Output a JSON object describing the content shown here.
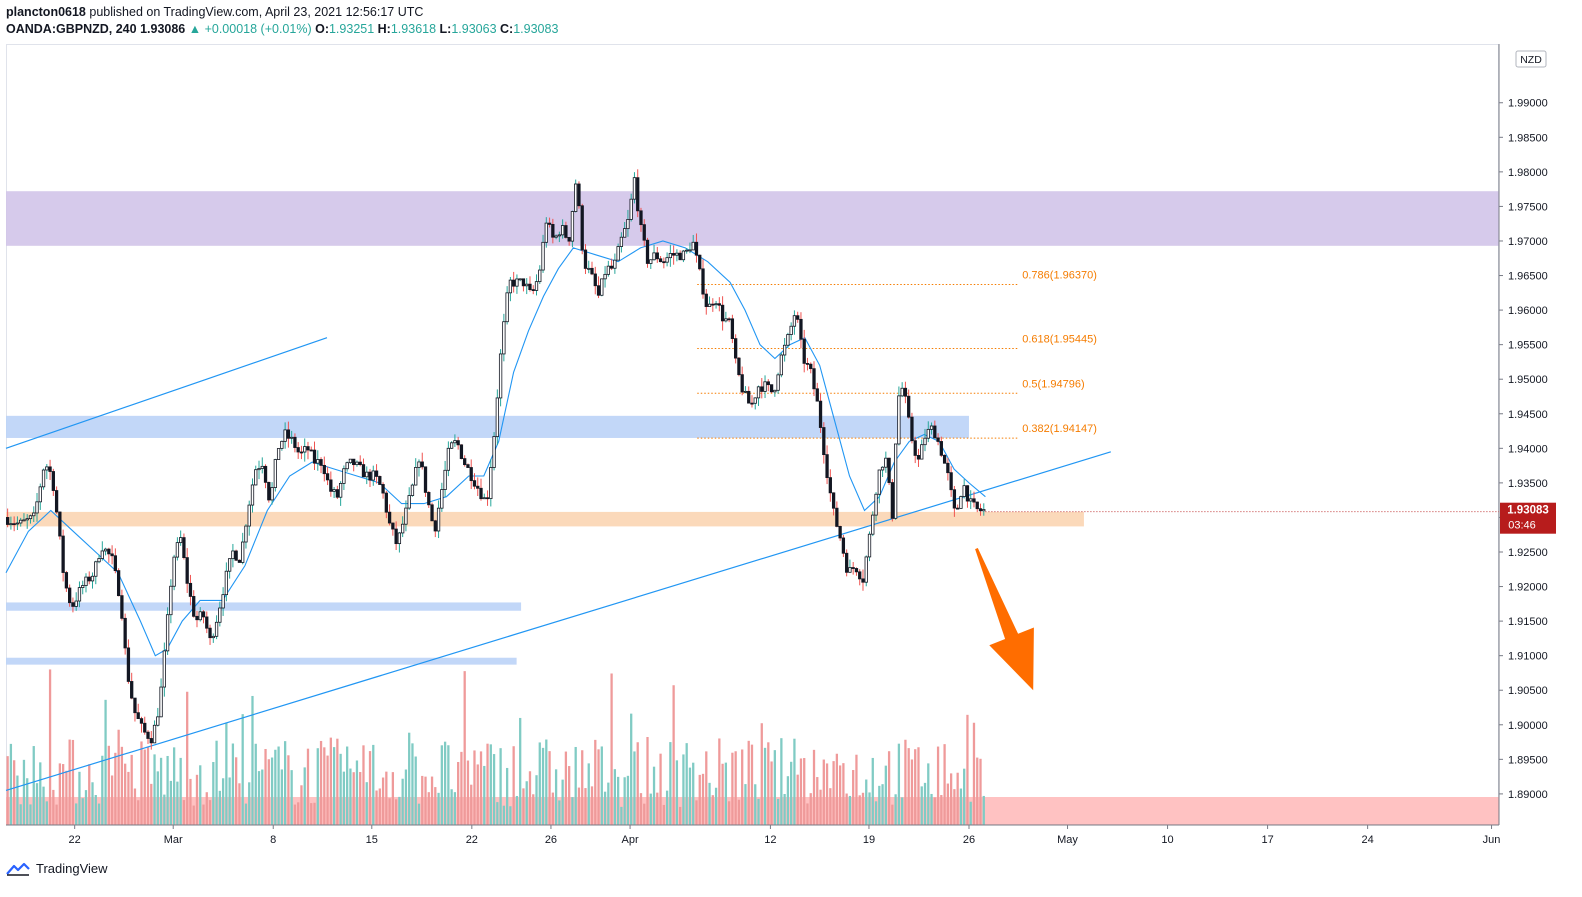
{
  "header": {
    "publisher": "plancton0618",
    "published_text": "published on TradingView.com, April 23, 2021 12:56:17 UTC",
    "symbol": "OANDA:GBPNZD, 240",
    "last": "1.93086",
    "change": "▲ +0.00018 (+0.01%)",
    "o_label": "O:",
    "o_value": "1.93251",
    "h_label": "H:",
    "h_value": "1.93618",
    "l_label": "L:",
    "l_value": "1.93063",
    "c_label": "C:",
    "c_value": "1.93083"
  },
  "footer": {
    "brand": "TradingView",
    "logo_icon": "tradingview-logo-icon"
  },
  "currency_badge": "NZD",
  "price_tag": {
    "price": "1.93083",
    "countdown": "03:46",
    "color": "#b71c1c"
  },
  "colors": {
    "up_body": "#ffffff",
    "down_body": "#131722",
    "wick": "#131722",
    "ma_line": "#2196f3",
    "trend_line": "#2196f3",
    "purple_zone": "#d1c4e9",
    "blue_zone": "#bbd3f7",
    "orange_zone": "#fbd5b3",
    "red_zone": "#ffb3b3",
    "volume_up": "#80cbc4",
    "volume_down": "#ef9a9a",
    "fib": "#f57c00",
    "arrow": "#ff6d00"
  },
  "chart_data": {
    "type": "candlestick",
    "symbol": "OANDA:GBPNZD",
    "timeframe": "240",
    "y_range": [
      1.8855,
      1.9985
    ],
    "y_ticks": [
      "1.99000",
      "1.98500",
      "1.98000",
      "1.97500",
      "1.97000",
      "1.96500",
      "1.96000",
      "1.95500",
      "1.95000",
      "1.94500",
      "1.94000",
      "1.93500",
      "1.93000",
      "1.92500",
      "1.92000",
      "1.91500",
      "1.91000",
      "1.90500",
      "1.90000",
      "1.89500",
      "1.89000"
    ],
    "x_ticks": [
      {
        "label": "22",
        "x": 0.046
      },
      {
        "label": "Mar",
        "x": 0.112
      },
      {
        "label": "8",
        "x": 0.179
      },
      {
        "label": "15",
        "x": 0.245
      },
      {
        "label": "22",
        "x": 0.312
      },
      {
        "label": "26",
        "x": 0.365
      },
      {
        "label": "Apr",
        "x": 0.418
      },
      {
        "label": "12",
        "x": 0.512
      },
      {
        "label": "19",
        "x": 0.578
      },
      {
        "label": "26",
        "x": 0.645
      },
      {
        "label": "May",
        "x": 0.711
      },
      {
        "label": "10",
        "x": 0.778
      },
      {
        "label": "17",
        "x": 0.845
      },
      {
        "label": "24",
        "x": 0.912
      },
      {
        "label": "Jun",
        "x": 0.995
      }
    ],
    "anchors": [
      [
        0.0,
        1.93
      ],
      [
        0.01,
        1.929
      ],
      [
        0.02,
        1.93
      ],
      [
        0.027,
        1.938
      ],
      [
        0.032,
        1.936
      ],
      [
        0.036,
        1.929
      ],
      [
        0.04,
        1.921
      ],
      [
        0.045,
        1.917
      ],
      [
        0.052,
        1.92
      ],
      [
        0.06,
        1.922
      ],
      [
        0.065,
        1.926
      ],
      [
        0.072,
        1.924
      ],
      [
        0.078,
        1.918
      ],
      [
        0.082,
        1.908
      ],
      [
        0.087,
        1.902
      ],
      [
        0.093,
        1.899
      ],
      [
        0.099,
        1.898
      ],
      [
        0.104,
        1.903
      ],
      [
        0.108,
        1.912
      ],
      [
        0.113,
        1.924
      ],
      [
        0.118,
        1.927
      ],
      [
        0.123,
        1.92
      ],
      [
        0.128,
        1.915
      ],
      [
        0.133,
        1.916
      ],
      [
        0.138,
        1.912
      ],
      [
        0.143,
        1.916
      ],
      [
        0.148,
        1.921
      ],
      [
        0.153,
        1.925
      ],
      [
        0.158,
        1.924
      ],
      [
        0.163,
        1.931
      ],
      [
        0.168,
        1.937
      ],
      [
        0.173,
        1.938
      ],
      [
        0.178,
        1.932
      ],
      [
        0.183,
        1.94
      ],
      [
        0.188,
        1.942
      ],
      [
        0.193,
        1.941
      ],
      [
        0.198,
        1.939
      ],
      [
        0.203,
        1.94
      ],
      [
        0.208,
        1.938
      ],
      [
        0.213,
        1.938
      ],
      [
        0.218,
        1.934
      ],
      [
        0.223,
        1.933
      ],
      [
        0.228,
        1.937
      ],
      [
        0.233,
        1.938
      ],
      [
        0.238,
        1.937
      ],
      [
        0.243,
        1.936
      ],
      [
        0.248,
        1.936
      ],
      [
        0.253,
        1.934
      ],
      [
        0.258,
        1.929
      ],
      [
        0.263,
        1.926
      ],
      [
        0.268,
        1.93
      ],
      [
        0.273,
        1.934
      ],
      [
        0.278,
        1.939
      ],
      [
        0.283,
        1.933
      ],
      [
        0.288,
        1.928
      ],
      [
        0.293,
        1.934
      ],
      [
        0.298,
        1.94
      ],
      [
        0.303,
        1.941
      ],
      [
        0.308,
        1.938
      ],
      [
        0.313,
        1.936
      ],
      [
        0.318,
        1.934
      ],
      [
        0.323,
        1.932
      ],
      [
        0.328,
        1.942
      ],
      [
        0.333,
        1.955
      ],
      [
        0.338,
        1.964
      ],
      [
        0.343,
        1.964
      ],
      [
        0.348,
        1.964
      ],
      [
        0.353,
        1.962
      ],
      [
        0.358,
        1.965
      ],
      [
        0.363,
        1.973
      ],
      [
        0.368,
        1.97
      ],
      [
        0.373,
        1.972
      ],
      [
        0.378,
        1.97
      ],
      [
        0.383,
        1.979
      ],
      [
        0.388,
        1.967
      ],
      [
        0.393,
        1.965
      ],
      [
        0.398,
        1.962
      ],
      [
        0.403,
        1.966
      ],
      [
        0.408,
        1.966
      ],
      [
        0.413,
        1.97
      ],
      [
        0.418,
        1.973
      ],
      [
        0.422,
        1.979
      ],
      [
        0.426,
        1.972
      ],
      [
        0.431,
        1.967
      ],
      [
        0.436,
        1.968
      ],
      [
        0.441,
        1.967
      ],
      [
        0.446,
        1.968
      ],
      [
        0.451,
        1.968
      ],
      [
        0.456,
        1.968
      ],
      [
        0.461,
        1.97
      ],
      [
        0.466,
        1.965
      ],
      [
        0.471,
        1.96
      ],
      [
        0.476,
        1.962
      ],
      [
        0.481,
        1.959
      ],
      [
        0.486,
        1.958
      ],
      [
        0.49,
        1.952
      ],
      [
        0.495,
        1.948
      ],
      [
        0.5,
        1.946
      ],
      [
        0.505,
        1.949
      ],
      [
        0.51,
        1.949
      ],
      [
        0.515,
        1.948
      ],
      [
        0.52,
        1.953
      ],
      [
        0.525,
        1.956
      ],
      [
        0.53,
        1.96
      ],
      [
        0.535,
        1.953
      ],
      [
        0.54,
        1.951
      ],
      [
        0.545,
        1.946
      ],
      [
        0.55,
        1.938
      ],
      [
        0.555,
        1.931
      ],
      [
        0.56,
        1.927
      ],
      [
        0.565,
        1.922
      ],
      [
        0.57,
        1.923
      ],
      [
        0.575,
        1.921
      ],
      [
        0.58,
        1.928
      ],
      [
        0.585,
        1.936
      ],
      [
        0.59,
        1.939
      ],
      [
        0.595,
        1.93
      ],
      [
        0.598,
        1.947
      ],
      [
        0.602,
        1.949
      ],
      [
        0.607,
        1.942
      ],
      [
        0.612,
        1.938
      ],
      [
        0.617,
        1.942
      ],
      [
        0.622,
        1.943
      ],
      [
        0.627,
        1.94
      ],
      [
        0.632,
        1.936
      ],
      [
        0.637,
        1.93
      ],
      [
        0.642,
        1.935
      ],
      [
        0.647,
        1.932
      ],
      [
        0.652,
        1.931
      ],
      [
        0.656,
        1.931
      ]
    ],
    "moving_average": [
      [
        0.0,
        1.922
      ],
      [
        0.015,
        1.928
      ],
      [
        0.03,
        1.931
      ],
      [
        0.045,
        1.928
      ],
      [
        0.06,
        1.925
      ],
      [
        0.075,
        1.922
      ],
      [
        0.09,
        1.915
      ],
      [
        0.1,
        1.91
      ],
      [
        0.108,
        1.911
      ],
      [
        0.118,
        1.915
      ],
      [
        0.13,
        1.918
      ],
      [
        0.145,
        1.918
      ],
      [
        0.16,
        1.923
      ],
      [
        0.175,
        1.931
      ],
      [
        0.19,
        1.936
      ],
      [
        0.205,
        1.938
      ],
      [
        0.22,
        1.937
      ],
      [
        0.235,
        1.936
      ],
      [
        0.25,
        1.935
      ],
      [
        0.265,
        1.932
      ],
      [
        0.28,
        1.932
      ],
      [
        0.295,
        1.933
      ],
      [
        0.31,
        1.936
      ],
      [
        0.32,
        1.936
      ],
      [
        0.33,
        1.941
      ],
      [
        0.34,
        1.951
      ],
      [
        0.35,
        1.957
      ],
      [
        0.36,
        1.962
      ],
      [
        0.37,
        1.966
      ],
      [
        0.38,
        1.969
      ],
      [
        0.395,
        1.968
      ],
      [
        0.41,
        1.967
      ],
      [
        0.425,
        1.969
      ],
      [
        0.44,
        1.97
      ],
      [
        0.455,
        1.969
      ],
      [
        0.47,
        1.967
      ],
      [
        0.485,
        1.964
      ],
      [
        0.495,
        1.96
      ],
      [
        0.505,
        1.955
      ],
      [
        0.515,
        1.953
      ],
      [
        0.525,
        1.955
      ],
      [
        0.535,
        1.956
      ],
      [
        0.545,
        1.952
      ],
      [
        0.555,
        1.944
      ],
      [
        0.565,
        1.936
      ],
      [
        0.575,
        1.931
      ],
      [
        0.585,
        1.933
      ],
      [
        0.595,
        1.938
      ],
      [
        0.605,
        1.941
      ],
      [
        0.615,
        1.942
      ],
      [
        0.625,
        1.941
      ],
      [
        0.635,
        1.937
      ],
      [
        0.645,
        1.935
      ],
      [
        0.656,
        1.933
      ]
    ],
    "trend_lines": [
      {
        "from": [
          0.0,
          1.94
        ],
        "to": [
          0.215,
          1.956
        ]
      },
      {
        "from": [
          0.0,
          1.8905
        ],
        "to": [
          0.74,
          1.9395
        ]
      }
    ],
    "zones": [
      {
        "name": "purple-resistance-zone",
        "x": [
          0.0,
          1.0
        ],
        "y": [
          1.9693,
          1.9772
        ]
      },
      {
        "name": "blue-zone-upper",
        "x": [
          0.0,
          0.645
        ],
        "y": [
          1.9415,
          1.9447
        ]
      },
      {
        "name": "orange-support-zone",
        "x": [
          0.0,
          0.722
        ],
        "y": [
          1.9287,
          1.9308
        ]
      },
      {
        "name": "blue-zone-mid",
        "x": [
          0.0,
          0.345
        ],
        "y": [
          1.9165,
          1.9177
        ]
      },
      {
        "name": "blue-zone-low",
        "x": [
          0.0,
          0.342
        ],
        "y": [
          1.9087,
          1.9097
        ]
      }
    ],
    "fib_levels": [
      {
        "label": "0.786(1.96370)",
        "value": 1.9637
      },
      {
        "label": "0.618(1.95445)",
        "value": 1.95445
      },
      {
        "label": "0.5(1.94796)",
        "value": 1.94796
      },
      {
        "label": "0.382(1.94147)",
        "value": 1.94147
      }
    ],
    "fib_x_range": [
      0.463,
      0.678
    ],
    "arrow": {
      "from": [
        0.65,
        1.9255
      ],
      "to": [
        0.688,
        1.905
      ]
    },
    "current_price": 1.93083
  }
}
